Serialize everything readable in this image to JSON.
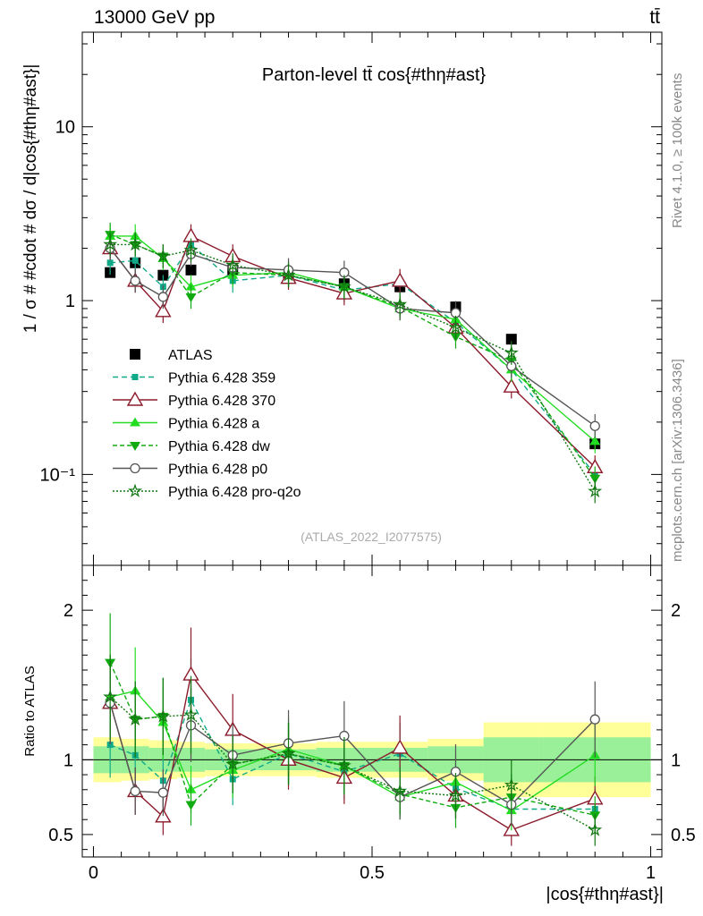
{
  "header": {
    "energy": "13000 GeV pp",
    "process": "tt̄"
  },
  "side_labels": {
    "rivet": "Rivet 4.1.0, ≥ 100k events",
    "source": "mcplots.cern.ch [arXiv:1306.3436]"
  },
  "analysis_tag": "(ATLAS_2022_I2077575)",
  "colors": {
    "atlas": "#000000",
    "p359": "#11aa88",
    "p370": "#8b1a2a",
    "pa": "#22dd22",
    "pdw": "#11aa11",
    "pp0": "#555555",
    "pq2o": "#117711",
    "band_inner": "#99f099",
    "band_outer": "#ffff99"
  },
  "chart_data": [
    {
      "type": "line",
      "title": "Parton-level tt̄ cos{#thη#ast}",
      "ylabel": "1 / σ # #cdot # dσ / d|cos{#thη#ast}|",
      "yscale": "log",
      "ylim": [
        0.03,
        35
      ],
      "xlim": [
        -0.02,
        1.02
      ],
      "y_ticks": [
        0.1,
        1,
        10
      ],
      "y_tick_labels": [
        "10⁻¹",
        "1",
        "10"
      ],
      "x": [
        0.03,
        0.075,
        0.125,
        0.175,
        0.25,
        0.35,
        0.45,
        0.55,
        0.65,
        0.75,
        0.9
      ],
      "x_edges": [
        0,
        0.05,
        0.1,
        0.15,
        0.2,
        0.3,
        0.4,
        0.5,
        0.6,
        0.7,
        0.8,
        1.0
      ],
      "series": [
        {
          "key": "atlas",
          "name": "ATLAS",
          "marker": "square",
          "values": [
            1.45,
            1.65,
            1.4,
            1.5,
            1.5,
            1.35,
            1.25,
            1.2,
            0.92,
            0.6,
            0.15
          ]
        },
        {
          "key": "p359",
          "name": "Pythia 6.428 359",
          "marker": "smallsquare",
          "dash": "6 4",
          "values": [
            1.65,
            1.7,
            1.2,
            2.1,
            1.3,
            1.4,
            1.15,
            1.25,
            0.75,
            0.4,
            0.1
          ]
        },
        {
          "key": "p370",
          "name": "Pythia 6.428 370",
          "marker": "triangle-open",
          "dash": "",
          "values": [
            2.0,
            1.3,
            0.87,
            2.35,
            1.8,
            1.35,
            1.1,
            1.3,
            0.7,
            0.32,
            0.11
          ]
        },
        {
          "key": "pa",
          "name": "Pythia 6.428 a",
          "marker": "triangle",
          "dash": "",
          "values": [
            2.35,
            2.35,
            1.75,
            1.2,
            1.4,
            1.45,
            1.2,
            0.9,
            0.78,
            0.4,
            0.155
          ]
        },
        {
          "key": "pdw",
          "name": "Pythia 6.428 dw",
          "marker": "triangle-down",
          "dash": "5 3",
          "values": [
            2.4,
            2.1,
            1.8,
            1.05,
            1.45,
            1.4,
            1.2,
            0.92,
            0.62,
            0.45,
            0.095
          ]
        },
        {
          "key": "pp0",
          "name": "Pythia 6.428 p0",
          "marker": "circle-open",
          "dash": "",
          "values": [
            2.0,
            1.3,
            1.05,
            1.85,
            1.55,
            1.5,
            1.45,
            0.9,
            0.85,
            0.42,
            0.19
          ]
        },
        {
          "key": "pq2o",
          "name": "Pythia 6.428 pro-q2o",
          "marker": "star",
          "dash": "2 2",
          "values": [
            2.1,
            2.1,
            1.8,
            1.95,
            1.6,
            1.4,
            1.2,
            0.95,
            0.7,
            0.5,
            0.08
          ]
        }
      ]
    },
    {
      "type": "line",
      "ylabel": "Ratio to ATLAS",
      "xlabel": "|cos{#thη#ast}|",
      "ylim": [
        0.35,
        2.3
      ],
      "xlim": [
        -0.02,
        1.02
      ],
      "y_ticks": [
        0.5,
        1,
        2
      ],
      "y_tick_labels": [
        "0.5",
        "1",
        "2"
      ],
      "x_ticks": [
        0,
        0.5,
        1
      ],
      "x_tick_labels": [
        "0",
        "0.5",
        "1"
      ],
      "band_inner": [
        0.09,
        0.09,
        0.08,
        0.08,
        0.07,
        0.07,
        0.08,
        0.08,
        0.09,
        0.15,
        0.15
      ],
      "band_outer": [
        0.15,
        0.14,
        0.13,
        0.12,
        0.11,
        0.11,
        0.12,
        0.12,
        0.14,
        0.25,
        0.25
      ],
      "series": [
        {
          "key": "p359",
          "values": [
            1.1,
            1.03,
            0.86,
            1.4,
            0.87,
            1.04,
            0.92,
            1.04,
            0.81,
            0.67,
            0.67
          ]
        },
        {
          "key": "p370",
          "values": [
            1.38,
            0.79,
            0.62,
            1.57,
            1.2,
            1.0,
            0.88,
            1.08,
            0.76,
            0.53,
            0.74
          ]
        },
        {
          "key": "pa",
          "values": [
            1.42,
            1.46,
            1.25,
            0.8,
            0.93,
            1.07,
            0.96,
            0.75,
            0.85,
            0.66,
            1.03
          ]
        },
        {
          "key": "pdw",
          "values": [
            1.65,
            1.27,
            1.29,
            0.7,
            0.97,
            1.04,
            0.96,
            0.77,
            0.68,
            0.75,
            0.63
          ]
        },
        {
          "key": "pp0",
          "values": [
            1.38,
            0.79,
            0.78,
            1.23,
            1.03,
            1.11,
            1.16,
            0.75,
            0.92,
            0.7,
            1.27
          ]
        },
        {
          "key": "pq2o",
          "values": [
            1.42,
            1.27,
            1.29,
            1.3,
            0.97,
            1.04,
            0.96,
            0.79,
            0.76,
            0.83,
            0.53
          ]
        }
      ]
    }
  ]
}
